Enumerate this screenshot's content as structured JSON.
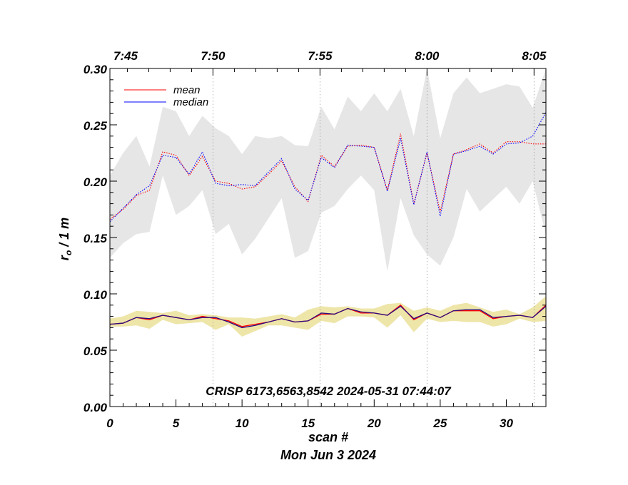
{
  "chart_data": {
    "type": "line",
    "title": "",
    "xlabel": "scan #",
    "ylabel": "r₀ / 1 m",
    "ylabel_main": "r",
    "ylabel_sub": "o",
    "ylabel_rest": " / 1 m",
    "date_label": "Mon Jun  3 2024",
    "annotation": "CRISP 6173,6563,8542 2024-05-31 07:44:07",
    "xlim": [
      0,
      33
    ],
    "ylim": [
      0.0,
      0.3
    ],
    "x_ticks": [
      0,
      5,
      10,
      15,
      20,
      25,
      30
    ],
    "x_tick_labels": [
      "0",
      "5",
      "10",
      "15",
      "20",
      "25",
      "30"
    ],
    "y_ticks": [
      0.0,
      0.05,
      0.1,
      0.15,
      0.2,
      0.25,
      0.3
    ],
    "y_tick_labels": [
      "0.00",
      "0.05",
      "0.10",
      "0.15",
      "0.20",
      "0.25",
      "0.30"
    ],
    "top_axis": {
      "ticks": [
        -0.3,
        7.8,
        15.9,
        24.0,
        32.1
      ],
      "labels": [
        "7:45",
        "7:50",
        "7:55",
        "8:00",
        "8:05"
      ]
    },
    "x": [
      0,
      1,
      2,
      3,
      4,
      5,
      6,
      7,
      8,
      9,
      10,
      11,
      12,
      13,
      14,
      15,
      16,
      17,
      18,
      19,
      20,
      21,
      22,
      23,
      24,
      25,
      26,
      27,
      28,
      29,
      30,
      31,
      32,
      33
    ],
    "legend": [
      {
        "label": "mean",
        "color": "#ff0000"
      },
      {
        "label": "median",
        "color": "#0000ff"
      }
    ],
    "colors": {
      "mean": "#ff0000",
      "median": "#0000ff",
      "band_high": "#e6e6e6",
      "band_low": "#eee5a8",
      "low_median": "#2a0a80",
      "grid": "#999999"
    },
    "series": [
      {
        "name": "mean (upper)",
        "style": "dotted",
        "color": "#ff0000",
        "values": [
          0.166,
          0.175,
          0.187,
          0.192,
          0.226,
          0.223,
          0.205,
          0.222,
          0.2,
          0.198,
          0.193,
          0.195,
          0.206,
          0.218,
          0.195,
          0.182,
          0.223,
          0.213,
          0.231,
          0.232,
          0.23,
          0.192,
          0.242,
          0.18,
          0.225,
          0.173,
          0.224,
          0.228,
          0.233,
          0.225,
          0.235,
          0.235,
          0.233,
          0.233
        ]
      },
      {
        "name": "median (upper)",
        "style": "dotted",
        "color": "#0000ff",
        "values": [
          0.164,
          0.176,
          0.188,
          0.196,
          0.223,
          0.221,
          0.206,
          0.226,
          0.198,
          0.196,
          0.197,
          0.196,
          0.208,
          0.22,
          0.193,
          0.183,
          0.221,
          0.212,
          0.232,
          0.231,
          0.23,
          0.191,
          0.238,
          0.179,
          0.226,
          0.169,
          0.224,
          0.227,
          0.231,
          0.224,
          0.233,
          0.234,
          0.24,
          0.261
        ]
      },
      {
        "name": "upper band max",
        "style": "fill",
        "values": [
          0.205,
          0.225,
          0.24,
          0.213,
          0.266,
          0.262,
          0.24,
          0.258,
          0.247,
          0.24,
          0.224,
          0.24,
          0.238,
          0.24,
          0.232,
          0.231,
          0.266,
          0.246,
          0.275,
          0.262,
          0.278,
          0.262,
          0.282,
          0.24,
          0.3,
          0.238,
          0.278,
          0.292,
          0.278,
          0.282,
          0.286,
          0.284,
          0.265,
          0.3
        ]
      },
      {
        "name": "upper band min",
        "style": "fill",
        "values": [
          0.132,
          0.145,
          0.153,
          0.155,
          0.205,
          0.17,
          0.178,
          0.192,
          0.153,
          0.162,
          0.135,
          0.149,
          0.167,
          0.185,
          0.132,
          0.138,
          0.172,
          0.178,
          0.193,
          0.205,
          0.192,
          0.12,
          0.185,
          0.152,
          0.135,
          0.125,
          0.15,
          0.193,
          0.173,
          0.184,
          0.195,
          0.18,
          0.2,
          0.152
        ]
      },
      {
        "name": "mean (lower)",
        "style": "solid",
        "color": "#ff0000",
        "values": [
          0.073,
          0.074,
          0.079,
          0.077,
          0.081,
          0.079,
          0.077,
          0.08,
          0.078,
          0.076,
          0.071,
          0.073,
          0.075,
          0.078,
          0.075,
          0.076,
          0.082,
          0.082,
          0.087,
          0.083,
          0.083,
          0.081,
          0.09,
          0.077,
          0.083,
          0.079,
          0.085,
          0.085,
          0.085,
          0.078,
          0.08,
          0.081,
          0.079,
          0.09
        ]
      },
      {
        "name": "median (lower)",
        "style": "solid",
        "color": "#2a0a80",
        "values": [
          0.073,
          0.074,
          0.079,
          0.078,
          0.081,
          0.079,
          0.077,
          0.079,
          0.079,
          0.075,
          0.07,
          0.072,
          0.075,
          0.078,
          0.075,
          0.076,
          0.083,
          0.082,
          0.087,
          0.084,
          0.083,
          0.081,
          0.089,
          0.078,
          0.083,
          0.079,
          0.085,
          0.086,
          0.086,
          0.079,
          0.08,
          0.081,
          0.079,
          0.089
        ]
      },
      {
        "name": "lower band max",
        "style": "fill",
        "values": [
          0.078,
          0.08,
          0.085,
          0.084,
          0.083,
          0.085,
          0.081,
          0.082,
          0.081,
          0.079,
          0.079,
          0.078,
          0.08,
          0.082,
          0.079,
          0.086,
          0.089,
          0.088,
          0.089,
          0.087,
          0.087,
          0.091,
          0.092,
          0.085,
          0.088,
          0.085,
          0.09,
          0.092,
          0.088,
          0.084,
          0.086,
          0.082,
          0.088,
          0.098
        ]
      },
      {
        "name": "lower band min",
        "style": "fill",
        "values": [
          0.071,
          0.071,
          0.072,
          0.069,
          0.077,
          0.073,
          0.074,
          0.075,
          0.068,
          0.073,
          0.062,
          0.067,
          0.072,
          0.072,
          0.07,
          0.068,
          0.076,
          0.074,
          0.08,
          0.08,
          0.079,
          0.07,
          0.081,
          0.066,
          0.078,
          0.075,
          0.076,
          0.075,
          0.075,
          0.071,
          0.073,
          0.078,
          0.075,
          0.076
        ]
      }
    ]
  }
}
